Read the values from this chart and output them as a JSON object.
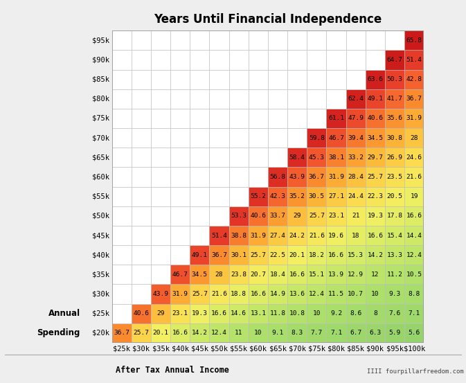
{
  "title": "Years Until Financial Independence",
  "xlabel": "After Tax Annual Income",
  "footer": "IIII fourpillarfreedom.com",
  "spending_labels": [
    "$20k",
    "$25k",
    "$30k",
    "$35k",
    "$40k",
    "$45k",
    "$50k",
    "$55k",
    "$60k",
    "$65k",
    "$70k",
    "$75k",
    "$80k",
    "$85k",
    "$90k",
    "$95k"
  ],
  "income_labels": [
    "$25k",
    "$30k",
    "$35k",
    "$40k",
    "$45k",
    "$50k",
    "$55k",
    "$60k",
    "$65k",
    "$70k",
    "$75k",
    "$80k",
    "$85k",
    "$90k",
    "$95k",
    "$100k"
  ],
  "annual_label": "Annual",
  "spending_label": "Spending",
  "grid_data": [
    [
      36.7,
      25.7,
      20.1,
      16.6,
      14.2,
      12.4,
      11.0,
      10.0,
      9.1,
      8.3,
      7.7,
      7.1,
      6.7,
      6.3,
      5.9,
      5.6
    ],
    [
      null,
      40.6,
      29.0,
      23.1,
      19.3,
      16.6,
      14.6,
      13.1,
      11.8,
      10.8,
      10.0,
      9.2,
      8.6,
      8.0,
      7.6,
      7.1
    ],
    [
      null,
      null,
      43.9,
      31.9,
      25.7,
      21.6,
      18.8,
      16.6,
      14.9,
      13.6,
      12.4,
      11.5,
      10.7,
      10.0,
      9.3,
      8.8
    ],
    [
      null,
      null,
      null,
      46.7,
      34.5,
      28.0,
      23.8,
      20.7,
      18.4,
      16.6,
      15.1,
      13.9,
      12.9,
      12.0,
      11.2,
      10.5
    ],
    [
      null,
      null,
      null,
      null,
      49.1,
      36.7,
      30.1,
      25.7,
      22.5,
      20.1,
      18.2,
      16.6,
      15.3,
      14.2,
      13.3,
      12.4
    ],
    [
      null,
      null,
      null,
      null,
      null,
      51.4,
      38.8,
      31.9,
      27.4,
      24.2,
      21.6,
      19.6,
      18.0,
      16.6,
      15.4,
      14.4
    ],
    [
      null,
      null,
      null,
      null,
      null,
      null,
      53.3,
      40.6,
      33.7,
      29.0,
      25.7,
      23.1,
      21.0,
      19.3,
      17.8,
      16.6
    ],
    [
      null,
      null,
      null,
      null,
      null,
      null,
      null,
      55.2,
      42.3,
      35.2,
      30.5,
      27.1,
      24.4,
      22.3,
      20.5,
      19.0
    ],
    [
      null,
      null,
      null,
      null,
      null,
      null,
      null,
      null,
      56.8,
      43.9,
      36.7,
      31.9,
      28.4,
      25.7,
      23.5,
      21.6
    ],
    [
      null,
      null,
      null,
      null,
      null,
      null,
      null,
      null,
      null,
      58.4,
      45.3,
      38.1,
      33.2,
      29.7,
      26.9,
      24.6
    ],
    [
      null,
      null,
      null,
      null,
      null,
      null,
      null,
      null,
      null,
      null,
      59.8,
      46.7,
      39.4,
      34.5,
      30.8,
      28.0
    ],
    [
      null,
      null,
      null,
      null,
      null,
      null,
      null,
      null,
      null,
      null,
      null,
      61.1,
      47.9,
      40.6,
      35.6,
      31.9
    ],
    [
      null,
      null,
      null,
      null,
      null,
      null,
      null,
      null,
      null,
      null,
      null,
      null,
      62.4,
      49.1,
      41.7,
      36.7
    ],
    [
      null,
      null,
      null,
      null,
      null,
      null,
      null,
      null,
      null,
      null,
      null,
      null,
      null,
      63.6,
      50.3,
      42.8
    ],
    [
      null,
      null,
      null,
      null,
      null,
      null,
      null,
      null,
      null,
      null,
      null,
      null,
      null,
      null,
      64.7,
      51.4
    ],
    [
      null,
      null,
      null,
      null,
      null,
      null,
      null,
      null,
      null,
      null,
      null,
      null,
      null,
      null,
      null,
      65.8
    ]
  ],
  "background_color": "#eeeeee",
  "cell_bg": "#ffffff",
  "grid_line_color": "#bbbbbb",
  "title_fontsize": 12,
  "label_fontsize": 7.5,
  "cell_fontsize": 6.8,
  "bold_label_fontsize": 8.5
}
